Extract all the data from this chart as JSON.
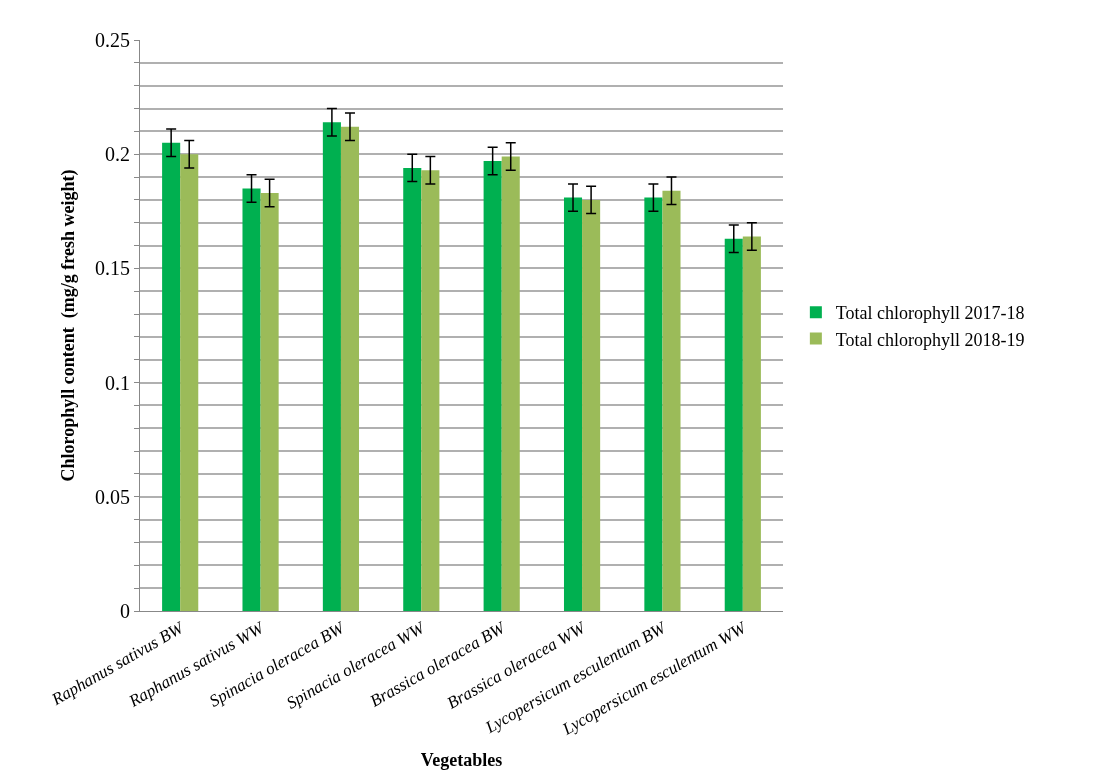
{
  "chart_data": {
    "type": "bar",
    "xlabel": "Vegetables",
    "ylabel": "Chlorophyll content  (mg/g fresh weight)",
    "categories": [
      "Raphanus sativus BW",
      "Raphanus sativus WW",
      "Spinacia oleracea BW",
      "Spinacia oleracea WW",
      "Brassica oleracea BW",
      "Brassica oleracea WW",
      "Lycopersicum esculentum BW",
      "Lycopersicum esculentum WW"
    ],
    "series": [
      {
        "name": "Total chlorophyll 2017-18",
        "color": "#00b050",
        "values": [
          0.205,
          0.185,
          0.214,
          0.194,
          0.197,
          0.181,
          0.181,
          0.163
        ],
        "errors": [
          0.006,
          0.006,
          0.006,
          0.006,
          0.006,
          0.006,
          0.006,
          0.006
        ]
      },
      {
        "name": "Total chlorophyll 2018-19",
        "color": "#9bbb59",
        "values": [
          0.2,
          0.183,
          0.212,
          0.193,
          0.199,
          0.18,
          0.184,
          0.164
        ],
        "errors": [
          0.006,
          0.006,
          0.006,
          0.006,
          0.006,
          0.006,
          0.006,
          0.006
        ]
      }
    ],
    "ylim": [
      0,
      0.25
    ],
    "yticks": [
      {
        "value": 0,
        "label": "0"
      },
      {
        "value": 0.01,
        "label": null
      },
      {
        "value": 0.02,
        "label": null
      },
      {
        "value": 0.03,
        "label": null
      },
      {
        "value": 0.04,
        "label": null
      },
      {
        "value": 0.05,
        "label": "0.05"
      },
      {
        "value": 0.06,
        "label": null
      },
      {
        "value": 0.07,
        "label": null
      },
      {
        "value": 0.08,
        "label": null
      },
      {
        "value": 0.09,
        "label": null
      },
      {
        "value": 0.1,
        "label": "0.1"
      },
      {
        "value": 0.11,
        "label": null
      },
      {
        "value": 0.12,
        "label": null
      },
      {
        "value": 0.13,
        "label": null
      },
      {
        "value": 0.14,
        "label": null
      },
      {
        "value": 0.15,
        "label": "0.15"
      },
      {
        "value": 0.16,
        "label": null
      },
      {
        "value": 0.17,
        "label": null
      },
      {
        "value": 0.18,
        "label": null
      },
      {
        "value": 0.19,
        "label": null
      },
      {
        "value": 0.2,
        "label": "0.2"
      },
      {
        "value": 0.21,
        "label": null
      },
      {
        "value": 0.22,
        "label": null
      },
      {
        "value": 0.23,
        "label": null
      },
      {
        "value": 0.24,
        "label": null
      },
      {
        "value": 0.25,
        "label": "0.25"
      }
    ],
    "grid": "y",
    "legend": "right"
  }
}
